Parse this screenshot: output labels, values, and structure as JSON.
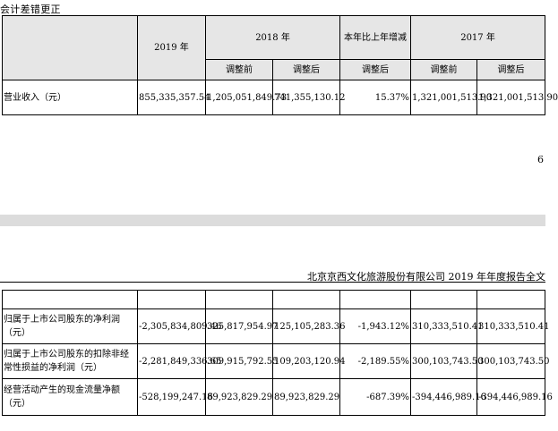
{
  "section_title": "会计差错更正",
  "top_table": {
    "headers": {
      "y2019": "2019 年",
      "y2018": "2018 年",
      "yoy": "本年比上年增减",
      "y2017": "2017 年",
      "before_adj": "调整前",
      "after_adj": "调整后"
    },
    "row": {
      "label": "营业收入（元）",
      "v2019": "855,335,357.54",
      "v2018_before": "1,205,051,849.73",
      "v2018_after": "741,355,130.12",
      "yoy_after": "15.37%",
      "v2017_before": "1,321,001,513.90",
      "v2017_after": "1,321,001,513.90"
    }
  },
  "page_number": "6",
  "doc_header": "北京京西文化旅游股份有限公司 2019 年年度报告全文",
  "bottom_table": {
    "rows": [
      {
        "label": "归属于上市公司股东的净利润（元）",
        "v2019": "-2,305,834,809.46",
        "v2018_before": "325,817,954.97",
        "v2018_after": "125,105,283.36",
        "yoy_after": "-1,943.12%",
        "v2017_before": "310,333,510.41",
        "v2017_after": "310,333,510.41"
      },
      {
        "label": "归属于上市公司股东的扣除非经常性损益的净利润（元）",
        "v2019": "-2,281,849,336.65",
        "v2018_before": "309,915,792.55",
        "v2018_after": "109,203,120.94",
        "yoy_after": "-2,189.55%",
        "v2017_before": "300,103,743.50",
        "v2017_after": "300,103,743.50"
      },
      {
        "label": "经营活动产生的现金流量净额（元）",
        "v2019": "-528,199,247.16",
        "v2018_before": "89,923,829.29",
        "v2018_after": "89,923,829.29",
        "yoy_after": "-687.39%",
        "v2017_before": "-394,446,989.16",
        "v2017_after": "-394,446,989.16"
      }
    ]
  }
}
